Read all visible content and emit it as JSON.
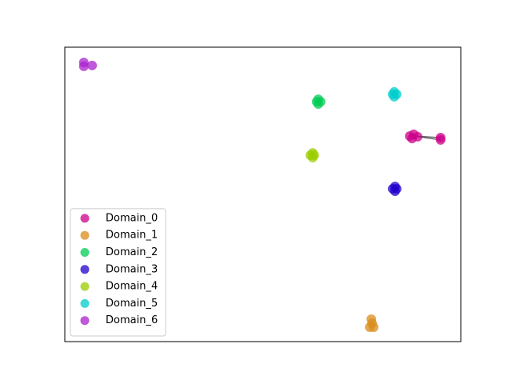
{
  "chart_data": {
    "type": "scatter",
    "xlim": [
      0,
      100
    ],
    "ylim": [
      0,
      100
    ],
    "legend": "lower left",
    "series": [
      {
        "name": "Domain_0",
        "color": "#cc0088",
        "x": [
          87.1,
          88.1,
          89.1,
          87.7,
          94.9,
          94.9
        ],
        "y": [
          69.8,
          70.4,
          69.6,
          69.0,
          69.3,
          68.5
        ]
      },
      {
        "name": "Domain_1",
        "color": "#d98c1a",
        "x": [
          77.4,
          77.0,
          78.0,
          77.6
        ],
        "y": [
          7.6,
          4.9,
          4.9,
          6.2
        ]
      },
      {
        "name": "Domain_2",
        "color": "#00cc55",
        "x": [
          63.6,
          64.6,
          64.0,
          64.0
        ],
        "y": [
          81.5,
          81.5,
          82.3,
          80.7
        ]
      },
      {
        "name": "Domain_3",
        "color": "#2200cc",
        "x": [
          82.8,
          83.8,
          83.4,
          83.4
        ],
        "y": [
          51.9,
          51.9,
          52.7,
          51.1
        ]
      },
      {
        "name": "Domain_4",
        "color": "#99cc00",
        "x": [
          62.0,
          63.0,
          62.6,
          62.6
        ],
        "y": [
          63.3,
          63.3,
          64.1,
          62.5
        ]
      },
      {
        "name": "Domain_5",
        "color": "#00cccc",
        "x": [
          82.8,
          83.8,
          83.2,
          83.2
        ],
        "y": [
          84.0,
          84.0,
          84.8,
          83.2
        ]
      },
      {
        "name": "Domain_6",
        "color": "#aa22cc",
        "x": [
          4.8,
          4.8,
          6.9
        ],
        "y": [
          94.8,
          93.5,
          93.8
        ]
      }
    ]
  }
}
